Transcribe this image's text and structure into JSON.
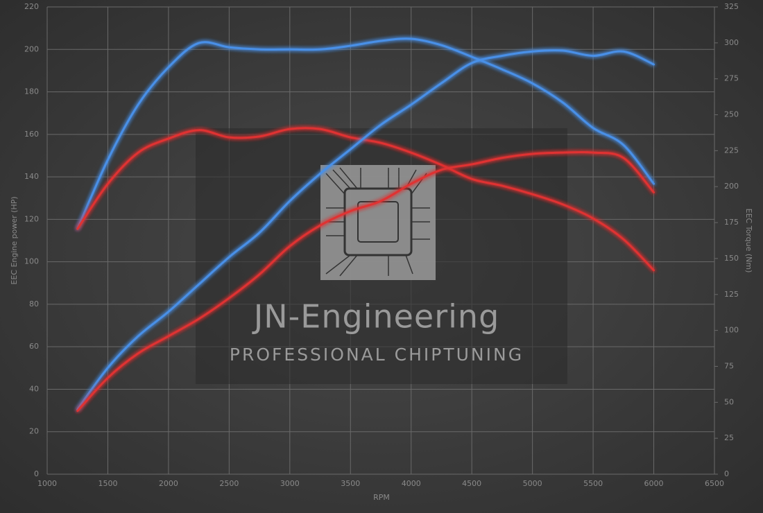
{
  "chart_data": {
    "type": "line",
    "x_label": "RPM",
    "y_label": "EEC Engine power (HP)",
    "y2_label": "EEC Torque (Nm)",
    "annotations": [
      "JN-Engineering",
      "PROFESSIONAL CHIPTUNING"
    ],
    "x": [
      1250,
      1500,
      1750,
      2000,
      2250,
      2500,
      2750,
      3000,
      3250,
      3500,
      3750,
      4000,
      4250,
      4500,
      4750,
      5000,
      5250,
      5500,
      5750,
      6000
    ],
    "xlim": [
      1000,
      6500
    ],
    "xticks": [
      1000,
      1500,
      2000,
      2500,
      3000,
      3500,
      4000,
      4500,
      5000,
      5500,
      6000,
      6500
    ],
    "ylim": [
      0,
      220
    ],
    "yticks": [
      0,
      20,
      40,
      60,
      80,
      100,
      120,
      140,
      160,
      180,
      200,
      220
    ],
    "y2lim": [
      0,
      325
    ],
    "y2ticks": [
      0,
      25,
      50,
      75,
      100,
      125,
      150,
      175,
      200,
      225,
      250,
      275,
      300,
      325
    ],
    "grid": true,
    "series": [
      {
        "color": "#4a90e8",
        "values": [
          115.5,
          148,
          174,
          191.6,
          203,
          201,
          200,
          200,
          200,
          201.7,
          204,
          205,
          202,
          196.5,
          190.6,
          184,
          175,
          163,
          155,
          136.7
        ]
      },
      {
        "color": "#e03232",
        "values": [
          115.5,
          136.7,
          151.4,
          158,
          162,
          158.6,
          159,
          162.5,
          162.5,
          158.6,
          156,
          151.4,
          145.6,
          139,
          135.8,
          131.8,
          127,
          120.4,
          110.6,
          96
        ]
      },
      {
        "color": "#4a90e8",
        "axis": "y2",
        "values": [
          45,
          74,
          96,
          113,
          132,
          151,
          168,
          190,
          209,
          226,
          243,
          257,
          272,
          286,
          291,
          294,
          294.6,
          291,
          294,
          285
        ]
      },
      {
        "color": "#e03232",
        "axis": "y2",
        "values": [
          44,
          67,
          84,
          96,
          108,
          122.5,
          139,
          158.6,
          173,
          183,
          190,
          202,
          211.7,
          215.5,
          220,
          222.8,
          223.7,
          223.7,
          220,
          196
        ]
      }
    ]
  }
}
